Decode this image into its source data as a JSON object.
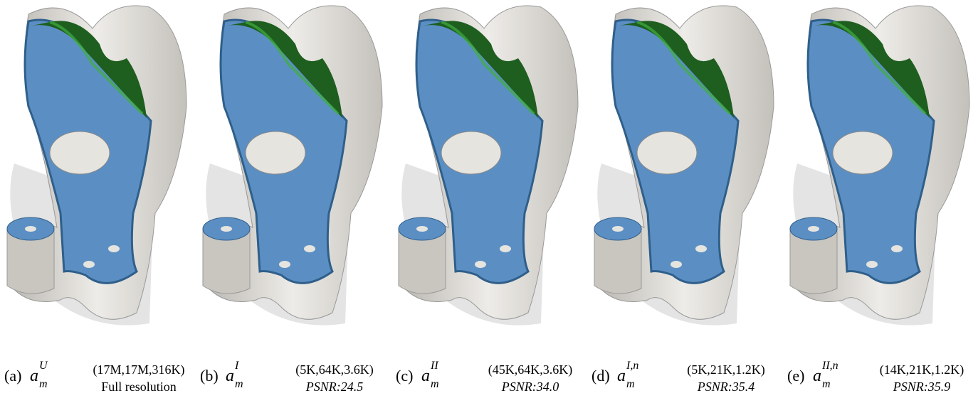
{
  "panels": [
    {
      "label": "(a)",
      "symbol": {
        "base": "a",
        "sup": "U",
        "sub": "m"
      },
      "stats": "(17M,17M,316K)",
      "note": "Full resolution"
    },
    {
      "label": "(b)",
      "symbol": {
        "base": "a",
        "sup": "I",
        "sub": "m"
      },
      "stats": "(5K,64K,3.6K)",
      "note": "PSNR:24.5"
    },
    {
      "label": "(c)",
      "symbol": {
        "base": "a",
        "sup": "II",
        "sub": "m"
      },
      "stats": "(45K,64K,3.6K)",
      "note": "PSNR:34.0"
    },
    {
      "label": "(d)",
      "symbol": {
        "base": "a",
        "sup": "I,n",
        "sub": "m"
      },
      "stats": "(5K,21K,1.2K)",
      "note": "PSNR:35.4"
    },
    {
      "label": "(e)",
      "symbol": {
        "base": "a",
        "sup": "II,n",
        "sub": "m"
      },
      "stats": "(14K,21K,1.2K)",
      "note": "PSNR:35.9"
    }
  ]
}
